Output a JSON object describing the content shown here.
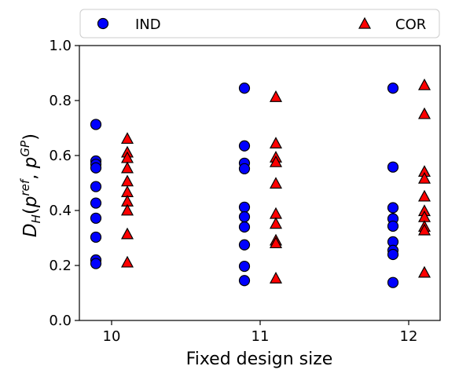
{
  "chart_data": {
    "type": "scatter",
    "xlabel": "Fixed design size",
    "ylabel": {
      "main": "D",
      "main_sub": "H",
      "open": "(",
      "p1": "p",
      "p1_sup": "ref",
      "comma": ", ",
      "p2": "p",
      "p2_sup": "GP",
      "close": ")"
    },
    "xticks": [
      "10",
      "11",
      "12"
    ],
    "yticks": [
      "0.0",
      "0.2",
      "0.4",
      "0.6",
      "0.8",
      "1.0"
    ],
    "ylim": [
      0,
      1
    ],
    "grid": false,
    "legend_position": "top",
    "series": [
      {
        "name": "IND",
        "marker": "circle",
        "color": "#0000ff",
        "points": [
          {
            "x": 10,
            "y": [
              0.713,
              0.58,
              0.568,
              0.555,
              0.487,
              0.427,
              0.372,
              0.303,
              0.22,
              0.207
            ]
          },
          {
            "x": 11,
            "y": [
              0.845,
              0.635,
              0.572,
              0.552,
              0.412,
              0.377,
              0.34,
              0.275,
              0.197,
              0.145
            ]
          },
          {
            "x": 12,
            "y": [
              0.845,
              0.558,
              0.41,
              0.37,
              0.343,
              0.286,
              0.255,
              0.24,
              0.138
            ]
          }
        ]
      },
      {
        "name": "COR",
        "marker": "triangle",
        "color": "#ff0000",
        "points": [
          {
            "x": 10,
            "y": [
              0.66,
              0.61,
              0.59,
              0.553,
              0.505,
              0.466,
              0.432,
              0.399,
              0.313,
              0.21
            ]
          },
          {
            "x": 11,
            "y": [
              0.812,
              0.643,
              0.592,
              0.575,
              0.497,
              0.387,
              0.351,
              0.29,
              0.28,
              0.152
            ]
          },
          {
            "x": 12,
            "y": [
              0.855,
              0.75,
              0.54,
              0.515,
              0.45,
              0.397,
              0.375,
              0.34,
              0.327,
              0.173
            ]
          }
        ]
      }
    ]
  }
}
